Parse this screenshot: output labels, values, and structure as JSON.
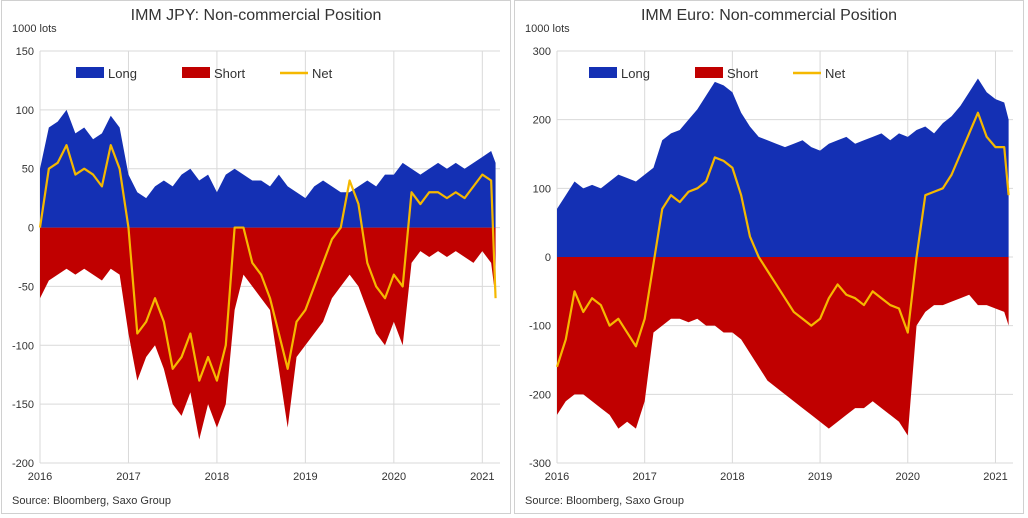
{
  "colors": {
    "long": "#1430b4",
    "short": "#c00000",
    "net": "#f5b800",
    "grid": "#d9d9d9"
  },
  "chart_data": [
    {
      "type": "area",
      "title": "IMM JPY: Non-commercial Position",
      "unit_label": "1000 lots",
      "source": "Source: Bloomberg, Saxo Group",
      "ylim": [
        -200,
        150
      ],
      "yticks": [
        "-200",
        "-150",
        "-100",
        "-50",
        "0",
        "50",
        "100",
        "150"
      ],
      "ytick_values": [
        -200,
        -150,
        -100,
        -50,
        0,
        50,
        100,
        150
      ],
      "xlim": [
        2016.0,
        2021.2
      ],
      "xticks": [
        "2016",
        "2017",
        "2018",
        "2019",
        "2020",
        "2021"
      ],
      "xtick_values": [
        2016,
        2017,
        2018,
        2019,
        2020,
        2021
      ],
      "grid": true,
      "legend": "top",
      "series": [
        {
          "name": "Long",
          "x": [
            2016.0,
            2016.1,
            2016.2,
            2016.3,
            2016.4,
            2016.5,
            2016.6,
            2016.7,
            2016.8,
            2016.9,
            2017.0,
            2017.1,
            2017.2,
            2017.3,
            2017.4,
            2017.5,
            2017.6,
            2017.7,
            2017.8,
            2017.9,
            2018.0,
            2018.1,
            2018.2,
            2018.3,
            2018.4,
            2018.5,
            2018.6,
            2018.7,
            2018.8,
            2018.9,
            2019.0,
            2019.1,
            2019.2,
            2019.3,
            2019.4,
            2019.5,
            2019.6,
            2019.7,
            2019.8,
            2019.9,
            2020.0,
            2020.1,
            2020.2,
            2020.3,
            2020.4,
            2020.5,
            2020.6,
            2020.7,
            2020.8,
            2020.9,
            2021.0,
            2021.1,
            2021.15
          ],
          "values": [
            50,
            85,
            90,
            100,
            80,
            85,
            75,
            80,
            95,
            85,
            45,
            30,
            25,
            35,
            40,
            35,
            45,
            50,
            40,
            45,
            30,
            45,
            50,
            45,
            40,
            40,
            35,
            45,
            35,
            30,
            25,
            35,
            40,
            35,
            30,
            30,
            35,
            40,
            35,
            45,
            45,
            55,
            50,
            45,
            50,
            55,
            50,
            55,
            50,
            55,
            60,
            65,
            55
          ]
        },
        {
          "name": "Short",
          "x": [
            2016.0,
            2016.1,
            2016.2,
            2016.3,
            2016.4,
            2016.5,
            2016.6,
            2016.7,
            2016.8,
            2016.9,
            2017.0,
            2017.1,
            2017.2,
            2017.3,
            2017.4,
            2017.5,
            2017.6,
            2017.7,
            2017.8,
            2017.9,
            2018.0,
            2018.1,
            2018.2,
            2018.3,
            2018.4,
            2018.5,
            2018.6,
            2018.7,
            2018.8,
            2018.9,
            2019.0,
            2019.1,
            2019.2,
            2019.3,
            2019.4,
            2019.5,
            2019.6,
            2019.7,
            2019.8,
            2019.9,
            2020.0,
            2020.1,
            2020.2,
            2020.3,
            2020.4,
            2020.5,
            2020.6,
            2020.7,
            2020.8,
            2020.9,
            2021.0,
            2021.1,
            2021.15
          ],
          "values": [
            -60,
            -45,
            -40,
            -35,
            -40,
            -35,
            -40,
            -45,
            -35,
            -40,
            -90,
            -130,
            -110,
            -100,
            -120,
            -150,
            -160,
            -140,
            -180,
            -150,
            -170,
            -150,
            -70,
            -40,
            -50,
            -60,
            -70,
            -120,
            -170,
            -110,
            -100,
            -90,
            -80,
            -60,
            -50,
            -40,
            -50,
            -70,
            -90,
            -100,
            -80,
            -100,
            -30,
            -20,
            -25,
            -20,
            -25,
            -20,
            -25,
            -30,
            -20,
            -30,
            -60
          ]
        },
        {
          "name": "Net",
          "x": [
            2016.0,
            2016.1,
            2016.2,
            2016.3,
            2016.4,
            2016.5,
            2016.6,
            2016.7,
            2016.8,
            2016.9,
            2017.0,
            2017.1,
            2017.2,
            2017.3,
            2017.4,
            2017.5,
            2017.6,
            2017.7,
            2017.8,
            2017.9,
            2018.0,
            2018.1,
            2018.2,
            2018.3,
            2018.4,
            2018.5,
            2018.6,
            2018.7,
            2018.8,
            2018.9,
            2019.0,
            2019.1,
            2019.2,
            2019.3,
            2019.4,
            2019.5,
            2019.6,
            2019.7,
            2019.8,
            2019.9,
            2020.0,
            2020.1,
            2020.2,
            2020.3,
            2020.4,
            2020.5,
            2020.6,
            2020.7,
            2020.8,
            2020.9,
            2021.0,
            2021.1,
            2021.15
          ],
          "values": [
            0,
            50,
            55,
            70,
            45,
            50,
            45,
            35,
            70,
            50,
            0,
            -90,
            -80,
            -60,
            -80,
            -120,
            -110,
            -90,
            -130,
            -110,
            -130,
            -100,
            0,
            0,
            -30,
            -40,
            -60,
            -90,
            -120,
            -80,
            -70,
            -50,
            -30,
            -10,
            0,
            40,
            20,
            -30,
            -50,
            -60,
            -40,
            -50,
            30,
            20,
            30,
            30,
            25,
            30,
            25,
            35,
            45,
            40,
            -60
          ]
        }
      ]
    },
    {
      "type": "area",
      "title": "IMM Euro: Non-commercial Position",
      "unit_label": "1000 lots",
      "source": "Source: Bloomberg, Saxo Group",
      "ylim": [
        -300,
        300
      ],
      "yticks": [
        "-300",
        "-200",
        "-100",
        "0",
        "100",
        "200",
        "300"
      ],
      "ytick_values": [
        -300,
        -200,
        -100,
        0,
        100,
        200,
        300
      ],
      "xlim": [
        2016.0,
        2021.2
      ],
      "xticks": [
        "2016",
        "2017",
        "2018",
        "2019",
        "2020",
        "2021"
      ],
      "xtick_values": [
        2016,
        2017,
        2018,
        2019,
        2020,
        2021
      ],
      "grid": true,
      "legend": "top",
      "series": [
        {
          "name": "Long",
          "x": [
            2016.0,
            2016.1,
            2016.2,
            2016.3,
            2016.4,
            2016.5,
            2016.6,
            2016.7,
            2016.8,
            2016.9,
            2017.0,
            2017.1,
            2017.2,
            2017.3,
            2017.4,
            2017.5,
            2017.6,
            2017.7,
            2017.8,
            2017.9,
            2018.0,
            2018.1,
            2018.2,
            2018.3,
            2018.4,
            2018.5,
            2018.6,
            2018.7,
            2018.8,
            2018.9,
            2019.0,
            2019.1,
            2019.2,
            2019.3,
            2019.4,
            2019.5,
            2019.6,
            2019.7,
            2019.8,
            2019.9,
            2020.0,
            2020.1,
            2020.2,
            2020.3,
            2020.4,
            2020.5,
            2020.6,
            2020.7,
            2020.8,
            2020.9,
            2021.0,
            2021.1,
            2021.15
          ],
          "values": [
            70,
            90,
            110,
            100,
            105,
            100,
            110,
            120,
            115,
            110,
            120,
            130,
            170,
            180,
            185,
            200,
            215,
            235,
            255,
            250,
            240,
            210,
            190,
            175,
            170,
            165,
            160,
            165,
            170,
            160,
            155,
            165,
            170,
            175,
            165,
            170,
            175,
            180,
            170,
            180,
            175,
            185,
            190,
            180,
            195,
            205,
            220,
            240,
            260,
            240,
            230,
            225,
            200
          ]
        },
        {
          "name": "Short",
          "x": [
            2016.0,
            2016.1,
            2016.2,
            2016.3,
            2016.4,
            2016.5,
            2016.6,
            2016.7,
            2016.8,
            2016.9,
            2017.0,
            2017.1,
            2017.2,
            2017.3,
            2017.4,
            2017.5,
            2017.6,
            2017.7,
            2017.8,
            2017.9,
            2018.0,
            2018.1,
            2018.2,
            2018.3,
            2018.4,
            2018.5,
            2018.6,
            2018.7,
            2018.8,
            2018.9,
            2019.0,
            2019.1,
            2019.2,
            2019.3,
            2019.4,
            2019.5,
            2019.6,
            2019.7,
            2019.8,
            2019.9,
            2020.0,
            2020.1,
            2020.2,
            2020.3,
            2020.4,
            2020.5,
            2020.6,
            2020.7,
            2020.8,
            2020.9,
            2021.0,
            2021.1,
            2021.15
          ],
          "values": [
            -230,
            -210,
            -200,
            -200,
            -210,
            -220,
            -230,
            -250,
            -240,
            -250,
            -210,
            -110,
            -100,
            -90,
            -90,
            -95,
            -90,
            -100,
            -100,
            -110,
            -110,
            -120,
            -140,
            -160,
            -180,
            -190,
            -200,
            -210,
            -220,
            -230,
            -240,
            -250,
            -240,
            -230,
            -220,
            -220,
            -210,
            -220,
            -230,
            -240,
            -260,
            -100,
            -80,
            -70,
            -70,
            -65,
            -60,
            -55,
            -70,
            -70,
            -75,
            -80,
            -100
          ]
        },
        {
          "name": "Net",
          "x": [
            2016.0,
            2016.1,
            2016.2,
            2016.3,
            2016.4,
            2016.5,
            2016.6,
            2016.7,
            2016.8,
            2016.9,
            2017.0,
            2017.1,
            2017.2,
            2017.3,
            2017.4,
            2017.5,
            2017.6,
            2017.7,
            2017.8,
            2017.9,
            2018.0,
            2018.1,
            2018.2,
            2018.3,
            2018.4,
            2018.5,
            2018.6,
            2018.7,
            2018.8,
            2018.9,
            2019.0,
            2019.1,
            2019.2,
            2019.3,
            2019.4,
            2019.5,
            2019.6,
            2019.7,
            2019.8,
            2019.9,
            2020.0,
            2020.1,
            2020.2,
            2020.3,
            2020.4,
            2020.5,
            2020.6,
            2020.7,
            2020.8,
            2020.9,
            2021.0,
            2021.1,
            2021.15
          ],
          "values": [
            -160,
            -120,
            -50,
            -80,
            -60,
            -70,
            -100,
            -90,
            -110,
            -130,
            -90,
            -10,
            70,
            90,
            80,
            95,
            100,
            110,
            145,
            140,
            130,
            90,
            30,
            0,
            -20,
            -40,
            -60,
            -80,
            -90,
            -100,
            -90,
            -60,
            -40,
            -55,
            -60,
            -70,
            -50,
            -60,
            -70,
            -75,
            -110,
            0,
            90,
            95,
            100,
            120,
            150,
            180,
            210,
            175,
            160,
            160,
            90
          ]
        }
      ]
    }
  ]
}
